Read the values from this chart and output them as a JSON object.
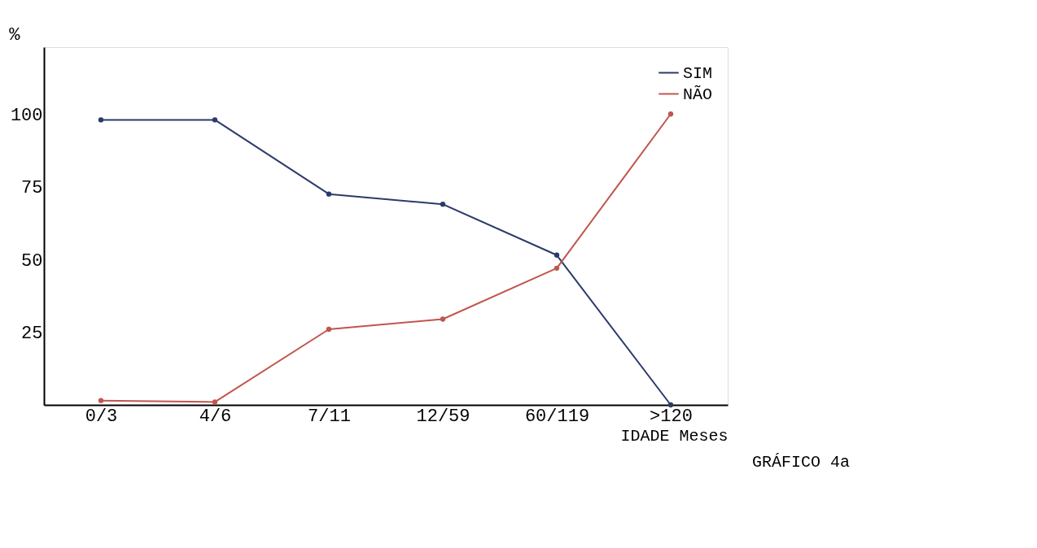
{
  "chart_data": {
    "type": "line",
    "xlabel": "IDADE Meses",
    "ylabel": "%",
    "categories": [
      "0/3",
      "4/6",
      "7/11",
      "12/59",
      "60/119",
      ">120"
    ],
    "series": [
      {
        "name": "SIM",
        "color": "#2b3a6b",
        "values": [
          98,
          98,
          72.5,
          69,
          51.5,
          0
        ]
      },
      {
        "name": "NÃO",
        "color": "#c0564e",
        "values": [
          1.5,
          1,
          26,
          29.5,
          47,
          100
        ]
      }
    ],
    "ylim": [
      0,
      123
    ],
    "yticks": [
      25,
      50,
      75,
      100
    ],
    "grid": false,
    "legend": "top right",
    "marker": "circle",
    "line_style": "solid",
    "annotations": [
      "GRÁFICO 4a"
    ]
  }
}
